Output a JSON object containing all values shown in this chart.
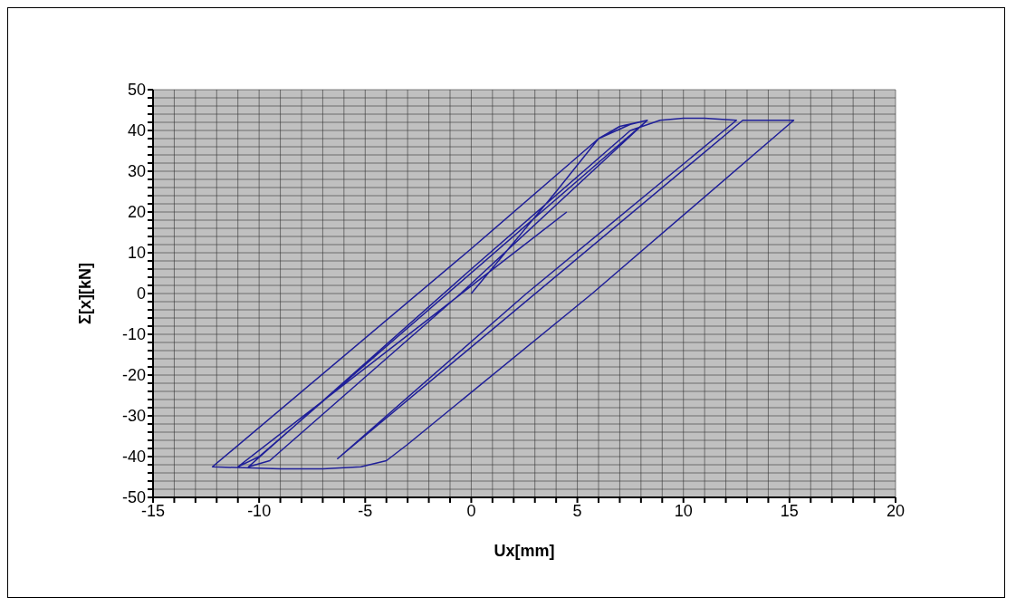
{
  "chart_data": {
    "type": "line",
    "xlabel": "Ux[mm]",
    "ylabel": "Σ[x][kN]",
    "xlim": [
      -15,
      20
    ],
    "ylim": [
      -50,
      50
    ],
    "xticks": [
      -15,
      {
        "value": -14,
        "label": null
      },
      {
        "value": -13,
        "label": null
      },
      {
        "value": -12,
        "label": null
      },
      {
        "value": -11,
        "label": null
      },
      -10,
      {
        "value": -9,
        "label": null
      },
      {
        "value": -8,
        "label": null
      },
      {
        "value": -7,
        "label": null
      },
      {
        "value": -6,
        "label": null
      },
      -5,
      {
        "value": -4,
        "label": null
      },
      {
        "value": -3,
        "label": null
      },
      {
        "value": -2,
        "label": null
      },
      {
        "value": -1,
        "label": null
      },
      0,
      {
        "value": 1,
        "label": null
      },
      {
        "value": 2,
        "label": null
      },
      {
        "value": 3,
        "label": null
      },
      {
        "value": 4,
        "label": null
      },
      5,
      {
        "value": 6,
        "label": null
      },
      {
        "value": 7,
        "label": null
      },
      {
        "value": 8,
        "label": null
      },
      {
        "value": 9,
        "label": null
      },
      10,
      {
        "value": 11,
        "label": null
      },
      {
        "value": 12,
        "label": null
      },
      {
        "value": 13,
        "label": null
      },
      {
        "value": 14,
        "label": null
      },
      15,
      {
        "value": 16,
        "label": null
      },
      {
        "value": 17,
        "label": null
      },
      {
        "value": 18,
        "label": null
      },
      {
        "value": 19,
        "label": null
      },
      20
    ],
    "yticks": [
      -50,
      {
        "value": -48,
        "label": null
      },
      {
        "value": -46,
        "label": null
      },
      {
        "value": -44,
        "label": null
      },
      {
        "value": -42,
        "label": null
      },
      -40,
      {
        "value": -38,
        "label": null
      },
      {
        "value": -36,
        "label": null
      },
      {
        "value": -34,
        "label": null
      },
      {
        "value": -32,
        "label": null
      },
      -30,
      {
        "value": -28,
        "label": null
      },
      {
        "value": -26,
        "label": null
      },
      {
        "value": -24,
        "label": null
      },
      {
        "value": -22,
        "label": null
      },
      -20,
      {
        "value": -18,
        "label": null
      },
      {
        "value": -16,
        "label": null
      },
      {
        "value": -14,
        "label": null
      },
      {
        "value": -12,
        "label": null
      },
      -10,
      {
        "value": -8,
        "label": null
      },
      {
        "value": -6,
        "label": null
      },
      {
        "value": -4,
        "label": null
      },
      {
        "value": -2,
        "label": null
      },
      0,
      {
        "value": 2,
        "label": null
      },
      {
        "value": 4,
        "label": null
      },
      {
        "value": 6,
        "label": null
      },
      {
        "value": 8,
        "label": null
      },
      10,
      {
        "value": 12,
        "label": null
      },
      {
        "value": 14,
        "label": null
      },
      {
        "value": 16,
        "label": null
      },
      {
        "value": 18,
        "label": null
      },
      20,
      {
        "value": 22,
        "label": null
      },
      {
        "value": 24,
        "label": null
      },
      {
        "value": 26,
        "label": null
      },
      {
        "value": 28,
        "label": null
      },
      30,
      {
        "value": 32,
        "label": null
      },
      {
        "value": 34,
        "label": null
      },
      {
        "value": 36,
        "label": null
      },
      {
        "value": 38,
        "label": null
      },
      40,
      {
        "value": 42,
        "label": null
      },
      {
        "value": 44,
        "label": null
      },
      {
        "value": 46,
        "label": null
      },
      {
        "value": 48,
        "label": null
      },
      50
    ],
    "grid": true,
    "marker": "none",
    "line_style": "solid",
    "series": [
      {
        "color": "#1f1f99",
        "x": [
          0,
          4,
          6,
          7,
          8.3,
          -0.5,
          -9.5,
          -10.5,
          0,
          7.5,
          8.9,
          10,
          11,
          12.5,
          2.6,
          -6.3,
          12.8,
          15.2,
          5.7,
          -3,
          -4,
          -5.2,
          -7,
          -9,
          -12.2,
          0,
          6,
          7.5,
          8.3,
          -10,
          -11,
          4.5
        ],
        "values": [
          0,
          25,
          38,
          41,
          42.5,
          0,
          -41,
          -42.5,
          6,
          40,
          42.5,
          43,
          43,
          42.5,
          0,
          -40.5,
          42.5,
          42.5,
          0,
          -37,
          -41,
          -42.5,
          -43,
          -43,
          -42.5,
          11,
          38,
          41.5,
          42.5,
          -40,
          -42.5,
          20
        ]
      }
    ]
  }
}
